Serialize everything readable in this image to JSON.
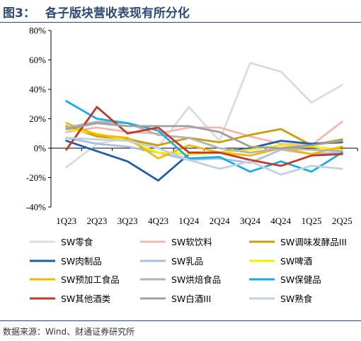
{
  "title": {
    "number": "图3：",
    "text": "各子版块营收表现有所分化"
  },
  "source": "数据来源：Wind、财通证券研究所",
  "chart_data": {
    "type": "line",
    "categories": [
      "1Q23",
      "2Q23",
      "3Q23",
      "4Q23",
      "1Q24",
      "2Q24",
      "3Q24",
      "4Q24",
      "1Q25",
      "2Q25"
    ],
    "ylim": [
      -40,
      80
    ],
    "yticks": [
      -40,
      -20,
      0,
      20,
      40,
      60,
      80
    ],
    "ytick_labels": [
      "-40%",
      "-20%",
      "0%",
      "20%",
      "40%",
      "60%",
      "80%"
    ],
    "grid": false,
    "legend_position": "bottom",
    "series": [
      {
        "name": "SW零食",
        "color": "#dcdcdc",
        "values": [
          -13,
          3,
          7,
          1,
          28,
          5,
          58,
          52,
          31,
          43
        ]
      },
      {
        "name": "SW软饮料",
        "color": "#f2b8b0",
        "values": [
          11,
          14,
          11,
          10,
          14,
          14,
          8,
          3,
          2,
          18
        ]
      },
      {
        "name": "SW调味发酵品III",
        "color": "#c8a000",
        "values": [
          15,
          8,
          6,
          2,
          7,
          4,
          9,
          13,
          2,
          6
        ]
      },
      {
        "name": "SW肉制品",
        "color": "#1f5fa8",
        "values": [
          5,
          -2,
          -9,
          -22,
          -4,
          -3,
          0,
          5,
          3,
          4
        ]
      },
      {
        "name": "SW乳品",
        "color": "#a7bfe3",
        "values": [
          7,
          3,
          1,
          -3,
          -8,
          -7,
          -10,
          -1,
          -4,
          -3
        ]
      },
      {
        "name": "SW啤酒",
        "color": "#f5f000",
        "values": [
          13,
          10,
          5,
          -3,
          -4,
          -3,
          -1,
          2,
          1,
          -1
        ]
      },
      {
        "name": "SW预加工食品",
        "color": "#f5b800",
        "values": [
          17,
          9,
          7,
          -7,
          2,
          -3,
          -5,
          0,
          -4,
          1
        ]
      },
      {
        "name": "SW烘焙食品",
        "color": "#b4b4b4",
        "values": [
          14,
          18,
          17,
          9,
          7,
          0,
          -3,
          0,
          -1,
          -2
        ]
      },
      {
        "name": "SW保健品",
        "color": "#1aaee0",
        "values": [
          32,
          20,
          17,
          12,
          -7,
          -6,
          -16,
          -9,
          -16,
          -3
        ]
      },
      {
        "name": "SW其他酒类",
        "color": "#c0392b",
        "values": [
          -1,
          28,
          10,
          14,
          -3,
          -3,
          -8,
          -12,
          -5,
          -4
        ]
      },
      {
        "name": "SW白酒III",
        "color": "#a0a0a0",
        "values": [
          13,
          17,
          15,
          15,
          15,
          11,
          1,
          0,
          2,
          5
        ]
      },
      {
        "name": "SW熟食",
        "color": "#c3cfe6",
        "values": [
          7,
          6,
          5,
          0,
          -8,
          -14,
          -9,
          -18,
          -12,
          -14
        ]
      }
    ]
  }
}
